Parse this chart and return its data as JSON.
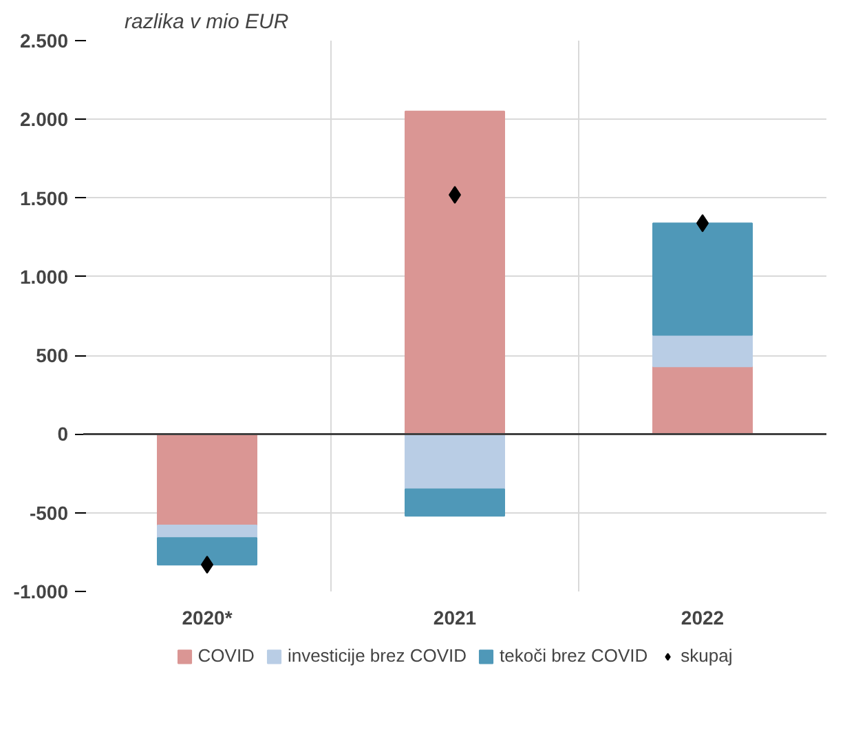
{
  "chart_data": {
    "type": "bar",
    "stacked": true,
    "title": "razlika v mio EUR",
    "categories": [
      "2020*",
      "2021",
      "2022"
    ],
    "series": [
      {
        "name": "COVID",
        "color": "#da9694",
        "values": [
          -580,
          2050,
          430
        ]
      },
      {
        "name": "investicije brez COVID",
        "color": "#b9cde5",
        "values": [
          -80,
          -350,
          200
        ]
      },
      {
        "name": "tekoči brez COVID",
        "color": "#4f98b8",
        "values": [
          -170,
          -170,
          710
        ]
      },
      {
        "name": "skupaj",
        "type": "scatter",
        "marker": "diamond",
        "color": "#000000",
        "values": [
          -830,
          1520,
          1340
        ]
      }
    ],
    "ylim": [
      -1000,
      2500
    ],
    "yticks": [
      {
        "value": -1000,
        "label": "-1.000"
      },
      {
        "value": -500,
        "label": "-500"
      },
      0,
      500,
      {
        "value": 1000,
        "label": "1.000"
      },
      {
        "value": 1500,
        "label": "1.500"
      },
      {
        "value": 2000,
        "label": "2.000"
      },
      {
        "value": 2500,
        "label": "2.500"
      }
    ],
    "grid": true,
    "legend": "bottom"
  }
}
